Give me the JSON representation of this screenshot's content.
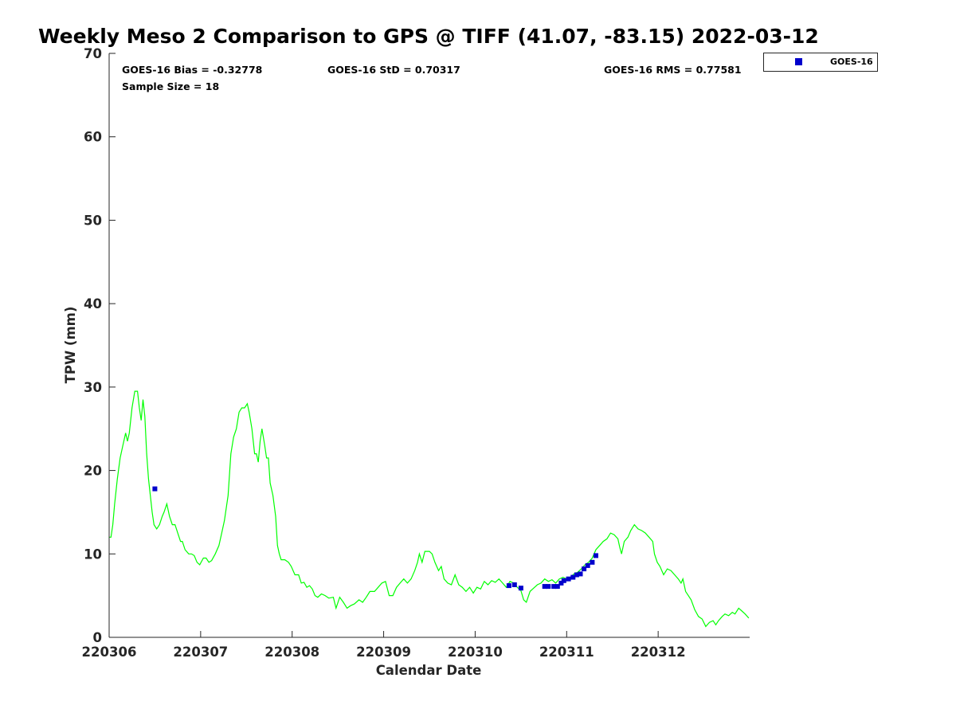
{
  "chart_data": {
    "type": "line",
    "title": "Weekly Meso 2 Comparison to GPS @ TIFF (41.07, -83.15) 2022-03-12",
    "xlabel": "Calendar Date",
    "ylabel": "TPW (mm)",
    "xlim": [
      0,
      7
    ],
    "ylim": [
      0,
      70
    ],
    "x_ticks": [
      {
        "value": 0,
        "label": "220306"
      },
      {
        "value": 1,
        "label": "220307"
      },
      {
        "value": 2,
        "label": "220308"
      },
      {
        "value": 3,
        "label": "220309"
      },
      {
        "value": 4,
        "label": "220310"
      },
      {
        "value": 5,
        "label": "220311"
      },
      {
        "value": 6,
        "label": "220312"
      }
    ],
    "y_ticks": [
      0,
      10,
      20,
      30,
      40,
      50,
      60,
      70
    ],
    "grid": false,
    "legend_position": "top-right",
    "stats": {
      "bias": "GOES-16 Bias = -0.32778",
      "std": "GOES-16 StD = 0.70317",
      "rms": "GOES-16 RMS = 0.77581",
      "sample": "Sample Size = 18"
    },
    "series": [
      {
        "kind": "line",
        "color": "#00ff00",
        "points": [
          [
            0.0,
            12.0
          ],
          [
            0.02,
            12.0
          ],
          [
            0.04,
            13.5
          ],
          [
            0.06,
            16.0
          ],
          [
            0.09,
            19.0
          ],
          [
            0.12,
            21.5
          ],
          [
            0.15,
            23.0
          ],
          [
            0.18,
            24.5
          ],
          [
            0.2,
            23.5
          ],
          [
            0.22,
            24.5
          ],
          [
            0.25,
            27.5
          ],
          [
            0.28,
            29.5
          ],
          [
            0.31,
            29.5
          ],
          [
            0.33,
            27.5
          ],
          [
            0.35,
            26.0
          ],
          [
            0.37,
            28.5
          ],
          [
            0.39,
            26.5
          ],
          [
            0.41,
            22.0
          ],
          [
            0.43,
            19.0
          ],
          [
            0.45,
            17.0
          ],
          [
            0.47,
            15.0
          ],
          [
            0.49,
            13.5
          ],
          [
            0.52,
            13.0
          ],
          [
            0.55,
            13.5
          ],
          [
            0.58,
            14.5
          ],
          [
            0.6,
            15.0
          ],
          [
            0.63,
            16.0
          ],
          [
            0.66,
            14.5
          ],
          [
            0.69,
            13.5
          ],
          [
            0.72,
            13.5
          ],
          [
            0.75,
            12.5
          ],
          [
            0.78,
            11.5
          ],
          [
            0.8,
            11.5
          ],
          [
            0.83,
            10.5
          ],
          [
            0.87,
            10.0
          ],
          [
            0.9,
            10.0
          ],
          [
            0.93,
            9.8
          ],
          [
            0.96,
            9.0
          ],
          [
            0.99,
            8.7
          ],
          [
            1.03,
            9.5
          ],
          [
            1.06,
            9.5
          ],
          [
            1.09,
            9.0
          ],
          [
            1.12,
            9.2
          ],
          [
            1.16,
            10.0
          ],
          [
            1.2,
            11.0
          ],
          [
            1.23,
            12.5
          ],
          [
            1.26,
            14.0
          ],
          [
            1.3,
            17.0
          ],
          [
            1.33,
            22.0
          ],
          [
            1.36,
            24.0
          ],
          [
            1.39,
            25.0
          ],
          [
            1.42,
            27.0
          ],
          [
            1.45,
            27.5
          ],
          [
            1.48,
            27.5
          ],
          [
            1.51,
            28.0
          ],
          [
            1.53,
            27.0
          ],
          [
            1.56,
            25.0
          ],
          [
            1.59,
            22.0
          ],
          [
            1.61,
            22.0
          ],
          [
            1.63,
            21.0
          ],
          [
            1.65,
            23.5
          ],
          [
            1.67,
            25.0
          ],
          [
            1.7,
            23.0
          ],
          [
            1.72,
            21.5
          ],
          [
            1.74,
            21.5
          ],
          [
            1.76,
            18.5
          ],
          [
            1.79,
            17.0
          ],
          [
            1.82,
            14.5
          ],
          [
            1.84,
            11.0
          ],
          [
            1.86,
            10.0
          ],
          [
            1.88,
            9.3
          ],
          [
            1.92,
            9.3
          ],
          [
            1.96,
            9.0
          ],
          [
            1.99,
            8.5
          ],
          [
            2.03,
            7.5
          ],
          [
            2.07,
            7.5
          ],
          [
            2.1,
            6.5
          ],
          [
            2.13,
            6.6
          ],
          [
            2.16,
            6.0
          ],
          [
            2.19,
            6.2
          ],
          [
            2.22,
            5.8
          ],
          [
            2.25,
            5.0
          ],
          [
            2.28,
            4.8
          ],
          [
            2.32,
            5.2
          ],
          [
            2.36,
            5.0
          ],
          [
            2.4,
            4.7
          ],
          [
            2.45,
            4.8
          ],
          [
            2.48,
            3.5
          ],
          [
            2.52,
            4.8
          ],
          [
            2.56,
            4.2
          ],
          [
            2.6,
            3.5
          ],
          [
            2.64,
            3.8
          ],
          [
            2.68,
            4.0
          ],
          [
            2.73,
            4.5
          ],
          [
            2.77,
            4.2
          ],
          [
            2.81,
            4.8
          ],
          [
            2.85,
            5.5
          ],
          [
            2.9,
            5.5
          ],
          [
            2.94,
            6.0
          ],
          [
            2.98,
            6.5
          ],
          [
            3.02,
            6.7
          ],
          [
            3.06,
            5.0
          ],
          [
            3.1,
            5.0
          ],
          [
            3.14,
            6.0
          ],
          [
            3.18,
            6.5
          ],
          [
            3.22,
            7.0
          ],
          [
            3.26,
            6.5
          ],
          [
            3.3,
            7.0
          ],
          [
            3.34,
            8.0
          ],
          [
            3.37,
            9.0
          ],
          [
            3.39,
            10.0
          ],
          [
            3.42,
            9.0
          ],
          [
            3.45,
            10.3
          ],
          [
            3.5,
            10.3
          ],
          [
            3.53,
            10.0
          ],
          [
            3.56,
            9.0
          ],
          [
            3.6,
            8.0
          ],
          [
            3.63,
            8.5
          ],
          [
            3.66,
            7.0
          ],
          [
            3.7,
            6.5
          ],
          [
            3.74,
            6.3
          ],
          [
            3.78,
            7.5
          ],
          [
            3.82,
            6.3
          ],
          [
            3.86,
            6.0
          ],
          [
            3.9,
            5.5
          ],
          [
            3.94,
            6.0
          ],
          [
            3.98,
            5.3
          ],
          [
            4.02,
            6.0
          ],
          [
            4.06,
            5.8
          ],
          [
            4.1,
            6.7
          ],
          [
            4.14,
            6.3
          ],
          [
            4.18,
            6.8
          ],
          [
            4.22,
            6.6
          ],
          [
            4.26,
            7.0
          ],
          [
            4.3,
            6.5
          ],
          [
            4.34,
            6.0
          ],
          [
            4.38,
            6.7
          ],
          [
            4.42,
            6.5
          ],
          [
            4.46,
            6.0
          ],
          [
            4.5,
            5.6
          ],
          [
            4.53,
            4.5
          ],
          [
            4.56,
            4.2
          ],
          [
            4.6,
            5.5
          ],
          [
            4.64,
            5.9
          ],
          [
            4.68,
            6.3
          ],
          [
            4.72,
            6.5
          ],
          [
            4.76,
            7.0
          ],
          [
            4.8,
            6.7
          ],
          [
            4.84,
            6.9
          ],
          [
            4.88,
            6.5
          ],
          [
            4.92,
            7.0
          ],
          [
            4.96,
            7.2
          ],
          [
            5.0,
            7.0
          ],
          [
            5.04,
            7.2
          ],
          [
            5.08,
            7.6
          ],
          [
            5.12,
            7.8
          ],
          [
            5.16,
            8.2
          ],
          [
            5.2,
            8.7
          ],
          [
            5.24,
            9.0
          ],
          [
            5.28,
            9.5
          ],
          [
            5.32,
            10.5
          ],
          [
            5.36,
            11.0
          ],
          [
            5.4,
            11.5
          ],
          [
            5.44,
            11.8
          ],
          [
            5.48,
            12.5
          ],
          [
            5.52,
            12.3
          ],
          [
            5.56,
            11.8
          ],
          [
            5.58,
            10.8
          ],
          [
            5.6,
            10.0
          ],
          [
            5.63,
            11.5
          ],
          [
            5.67,
            12.0
          ],
          [
            5.7,
            12.8
          ],
          [
            5.74,
            13.5
          ],
          [
            5.78,
            13.0
          ],
          [
            5.82,
            12.8
          ],
          [
            5.86,
            12.5
          ],
          [
            5.9,
            12.0
          ],
          [
            5.94,
            11.5
          ],
          [
            5.96,
            10.0
          ],
          [
            5.99,
            9.0
          ],
          [
            6.02,
            8.5
          ],
          [
            6.06,
            7.5
          ],
          [
            6.1,
            8.2
          ],
          [
            6.14,
            8.0
          ],
          [
            6.18,
            7.5
          ],
          [
            6.22,
            7.0
          ],
          [
            6.25,
            6.5
          ],
          [
            6.27,
            7.0
          ],
          [
            6.3,
            5.5
          ],
          [
            6.33,
            5.0
          ],
          [
            6.36,
            4.5
          ],
          [
            6.4,
            3.3
          ],
          [
            6.44,
            2.5
          ],
          [
            6.48,
            2.2
          ],
          [
            6.52,
            1.3
          ],
          [
            6.56,
            1.8
          ],
          [
            6.6,
            2.0
          ],
          [
            6.63,
            1.5
          ],
          [
            6.66,
            2.0
          ],
          [
            6.7,
            2.5
          ],
          [
            6.73,
            2.8
          ],
          [
            6.77,
            2.6
          ],
          [
            6.81,
            3.0
          ],
          [
            6.84,
            2.8
          ],
          [
            6.88,
            3.5
          ],
          [
            6.91,
            3.2
          ],
          [
            6.95,
            2.8
          ],
          [
            6.99,
            2.3
          ]
        ]
      },
      {
        "name": "GOES-16",
        "kind": "scatter",
        "color": "#0000cc",
        "points": [
          [
            0.5,
            17.8
          ],
          [
            4.37,
            6.2
          ],
          [
            4.43,
            6.3
          ],
          [
            4.5,
            5.9
          ],
          [
            4.76,
            6.1
          ],
          [
            4.8,
            6.1
          ],
          [
            4.86,
            6.1
          ],
          [
            4.9,
            6.1
          ],
          [
            4.94,
            6.5
          ],
          [
            4.97,
            6.8
          ],
          [
            5.02,
            7.0
          ],
          [
            5.07,
            7.2
          ],
          [
            5.11,
            7.5
          ],
          [
            5.15,
            7.6
          ],
          [
            5.19,
            8.2
          ],
          [
            5.23,
            8.6
          ],
          [
            5.28,
            9.0
          ],
          [
            5.32,
            9.8
          ]
        ]
      }
    ]
  }
}
